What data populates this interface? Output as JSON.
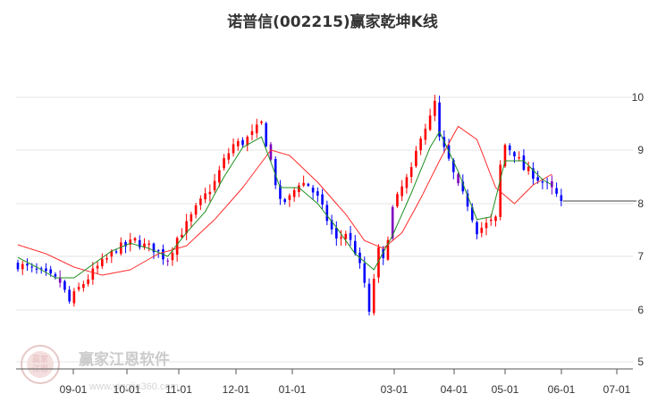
{
  "chart_data": {
    "type": "candlestick",
    "title": "诺普信(002215)赢家乾坤K线",
    "xlabel": "",
    "ylabel": "",
    "x_tick_labels": [
      "09-01",
      "10-01",
      "11-01",
      "12-01",
      "01-01",
      "03-01",
      "04-01",
      "05-01",
      "06-01",
      "07-01"
    ],
    "y_ticks": [
      5,
      6,
      7,
      8,
      9,
      10
    ],
    "y_tick_labels": [
      "5",
      "6",
      "7",
      "8",
      "9",
      "10"
    ],
    "ylim": [
      5,
      10.3
    ],
    "grid": true,
    "colors": {
      "up": "#ff0000",
      "down": "#0000ff",
      "long_ma": "#ff2a2a",
      "short_ma": "#1f8f1f",
      "turn": "#8000c0",
      "reference_line": "#000000"
    },
    "last_close": 8.05,
    "close_path": [
      [
        0,
        6.85
      ],
      [
        3,
        6.75
      ],
      [
        6,
        6.65
      ],
      [
        9,
        6.52
      ],
      [
        11,
        6.15
      ],
      [
        13,
        6.4
      ],
      [
        15,
        6.6
      ],
      [
        17,
        6.8
      ],
      [
        19,
        6.95
      ],
      [
        21,
        7.15
      ],
      [
        23,
        7.2
      ],
      [
        25,
        7.3
      ],
      [
        27,
        7.2
      ],
      [
        29,
        7.15
      ],
      [
        31,
        7.0
      ],
      [
        32,
        6.95
      ],
      [
        34,
        7.35
      ],
      [
        36,
        7.6
      ],
      [
        38,
        7.9
      ],
      [
        40,
        8.15
      ],
      [
        42,
        8.4
      ],
      [
        44,
        8.8
      ],
      [
        46,
        9.1
      ],
      [
        48,
        9.15
      ],
      [
        50,
        9.3
      ],
      [
        52,
        9.5
      ],
      [
        54,
        8.8
      ],
      [
        56,
        8.0
      ],
      [
        58,
        8.1
      ],
      [
        60,
        8.4
      ],
      [
        62,
        8.35
      ],
      [
        64,
        8.1
      ],
      [
        66,
        7.7
      ],
      [
        68,
        7.3
      ],
      [
        70,
        7.45
      ],
      [
        72,
        7.1
      ],
      [
        74,
        6.5
      ],
      [
        75,
        5.9
      ],
      [
        76,
        6.6
      ],
      [
        77,
        7.1
      ],
      [
        78,
        6.9
      ],
      [
        80,
        7.9
      ],
      [
        82,
        8.3
      ],
      [
        84,
        8.6
      ],
      [
        86,
        9.3
      ],
      [
        88,
        9.6
      ],
      [
        89,
        9.9
      ],
      [
        90,
        9.2
      ],
      [
        92,
        8.8
      ],
      [
        94,
        8.3
      ],
      [
        96,
        8.0
      ],
      [
        98,
        7.5
      ],
      [
        100,
        7.6
      ],
      [
        102,
        7.7
      ],
      [
        103,
        8.7
      ],
      [
        104,
        9.1
      ],
      [
        106,
        8.95
      ],
      [
        108,
        8.65
      ],
      [
        110,
        8.55
      ],
      [
        112,
        8.4
      ],
      [
        114,
        8.25
      ],
      [
        116,
        8.05
      ]
    ],
    "turn_markers": [
      [
        9,
        "down"
      ],
      [
        32,
        "down"
      ],
      [
        54,
        "down"
      ],
      [
        80,
        "up"
      ],
      [
        94,
        "down"
      ],
      [
        114,
        "down"
      ]
    ],
    "series": [
      {
        "values": [
          [
            0,
            7.22
          ],
          [
            6,
            7.05
          ],
          [
            12,
            6.8
          ],
          [
            18,
            6.65
          ],
          [
            24,
            6.75
          ],
          [
            30,
            7.05
          ],
          [
            36,
            7.2
          ],
          [
            42,
            7.7
          ],
          [
            48,
            8.3
          ],
          [
            54,
            9.0
          ],
          [
            58,
            8.9
          ],
          [
            64,
            8.4
          ],
          [
            70,
            7.8
          ],
          [
            74,
            7.3
          ],
          [
            78,
            7.15
          ],
          [
            82,
            7.45
          ],
          [
            86,
            8.1
          ],
          [
            90,
            8.8
          ],
          [
            94,
            9.45
          ],
          [
            98,
            9.2
          ],
          [
            102,
            8.3
          ],
          [
            106,
            8.0
          ],
          [
            110,
            8.35
          ],
          [
            114,
            8.55
          ]
        ]
      },
      {
        "values": [
          [
            0,
            6.98
          ],
          [
            4,
            6.8
          ],
          [
            8,
            6.6
          ],
          [
            12,
            6.6
          ],
          [
            16,
            6.85
          ],
          [
            20,
            7.1
          ],
          [
            24,
            7.25
          ],
          [
            28,
            7.15
          ],
          [
            32,
            7.0
          ],
          [
            36,
            7.45
          ],
          [
            40,
            7.85
          ],
          [
            44,
            8.5
          ],
          [
            48,
            9.05
          ],
          [
            52,
            9.25
          ],
          [
            56,
            8.3
          ],
          [
            60,
            8.3
          ],
          [
            64,
            8.0
          ],
          [
            68,
            7.55
          ],
          [
            72,
            7.05
          ],
          [
            76,
            6.75
          ],
          [
            80,
            7.4
          ],
          [
            84,
            8.2
          ],
          [
            88,
            9.05
          ],
          [
            90,
            9.35
          ],
          [
            94,
            8.6
          ],
          [
            98,
            7.7
          ],
          [
            101,
            7.75
          ],
          [
            104,
            8.8
          ],
          [
            108,
            8.8
          ],
          [
            112,
            8.45
          ],
          [
            114,
            8.35
          ]
        ]
      }
    ]
  },
  "watermark": {
    "brand": "赢家江恩软件",
    "url": "www.yingjia360.com",
    "logo_text": [
      "赢家",
      "江恩"
    ]
  }
}
